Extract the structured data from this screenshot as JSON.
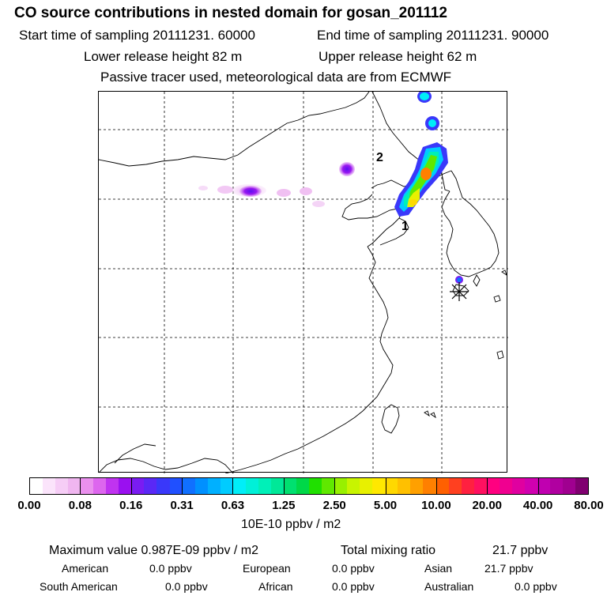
{
  "header": {
    "title": "CO  source contributions in nested domain for gosan_201112",
    "start_label": "Start time of sampling 20111231. 60000",
    "end_label": "End time of sampling 20111231. 90000",
    "lower_label": "Lower release height   82 m",
    "upper_label": "Upper release height   62 m",
    "tracer_label": "Passive tracer used, meteorological data are from ECMWF"
  },
  "map": {
    "labels": [
      "2",
      "1"
    ]
  },
  "colorbar": {
    "ticks": [
      "0.00",
      "0.08",
      "0.16",
      "0.31",
      "0.63",
      "1.25",
      "2.50",
      "5.00",
      "10.00",
      "20.00",
      "40.00",
      "80.00"
    ],
    "unit": "10E-10 ppbv / m2",
    "colors": [
      "#ffffff",
      "#fbe4fb",
      "#f6cdf6",
      "#f0b6f0",
      "#ea90ee",
      "#dd66ee",
      "#c033f0",
      "#9a10f0",
      "#7a1cf2",
      "#5a28f6",
      "#3a38fa",
      "#2050ff",
      "#1070ff",
      "#0090ff",
      "#00b0ff",
      "#00ccff",
      "#00eef8",
      "#00f0d8",
      "#00f0b8",
      "#00e898",
      "#00e070",
      "#00d848",
      "#20e000",
      "#60e800",
      "#98f000",
      "#c8f400",
      "#e8f000",
      "#ffe800",
      "#ffd800",
      "#ffc000",
      "#ffa000",
      "#ff8000",
      "#ff6000",
      "#ff4020",
      "#ff2040",
      "#ff1060",
      "#ff0080",
      "#f00090",
      "#e000a0",
      "#d000b0",
      "#c000b0",
      "#b000a0",
      "#a00090",
      "#800070"
    ]
  },
  "footer": {
    "max_label": "Maximum value  0.987E-09 ppbv / m2",
    "total_label": "Total mixing ratio",
    "total_value": "21.7 ppbv",
    "regions": [
      {
        "name": "American",
        "value": "0.0 ppbv"
      },
      {
        "name": "European",
        "value": "0.0 ppbv"
      },
      {
        "name": "Asian",
        "value": "21.7 ppbv"
      },
      {
        "name": "South American",
        "value": "0.0 ppbv"
      },
      {
        "name": "African",
        "value": "0.0 ppbv"
      },
      {
        "name": "Australian",
        "value": "0.0 ppbv"
      }
    ]
  }
}
